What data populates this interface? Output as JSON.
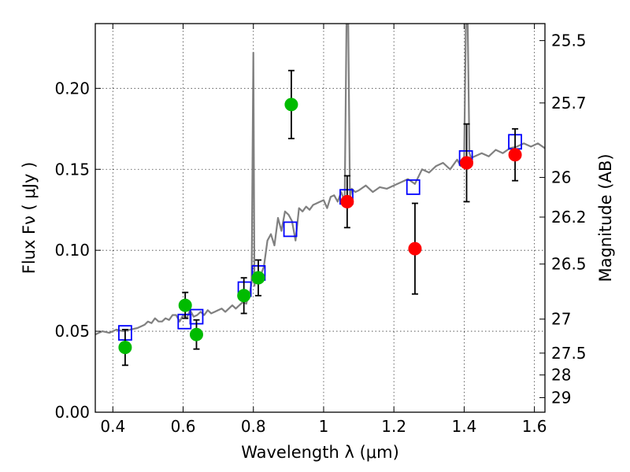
{
  "chart_data": {
    "type": "scatter",
    "xlabel": "Wavelength  λ (μm)",
    "ylabel": "Flux  Fν  ( μJy )",
    "y2label": "Magnitude (AB)",
    "xlim": [
      0.35,
      1.63
    ],
    "ylim": [
      0.0,
      0.24
    ],
    "grid": true,
    "x_ticks": [
      0.4,
      0.6,
      0.8,
      1.0,
      1.2,
      1.4,
      1.6
    ],
    "x_tick_labels": [
      "0.4",
      "0.6",
      "0.8",
      "1",
      "1.2",
      "1.4",
      "1.6"
    ],
    "y_ticks": [
      0.0,
      0.05,
      0.1,
      0.15,
      0.2
    ],
    "y_tick_labels": [
      "0.00",
      "0.05",
      "0.10",
      "0.15",
      "0.20"
    ],
    "y2_ticks": [
      {
        "label": "25.5",
        "flux": 0.2295
      },
      {
        "label": "25.7",
        "flux": 0.191
      },
      {
        "label": "26",
        "flux": 0.145
      },
      {
        "label": "26.2",
        "flux": 0.1205
      },
      {
        "label": "26.5",
        "flux": 0.0915
      },
      {
        "label": "27",
        "flux": 0.0575
      },
      {
        "label": "27.5",
        "flux": 0.0365
      },
      {
        "label": "28",
        "flux": 0.023
      },
      {
        "label": "29",
        "flux": 0.009
      }
    ],
    "colors": {
      "model": "#808080",
      "detected": "#00bb00",
      "nir": "#ff0000",
      "model_phot": "#0000ff",
      "error": "#000000"
    },
    "model_spectrum": {
      "x": [
        0.35,
        0.37,
        0.39,
        0.41,
        0.43,
        0.45,
        0.47,
        0.49,
        0.5,
        0.51,
        0.52,
        0.53,
        0.54,
        0.55,
        0.56,
        0.57,
        0.58,
        0.59,
        0.6,
        0.61,
        0.62,
        0.63,
        0.64,
        0.65,
        0.66,
        0.67,
        0.68,
        0.69,
        0.7,
        0.71,
        0.72,
        0.73,
        0.74,
        0.75,
        0.76,
        0.77,
        0.78,
        0.785,
        0.79,
        0.795,
        0.8,
        0.803,
        0.806,
        0.81,
        0.82,
        0.83,
        0.84,
        0.85,
        0.86,
        0.87,
        0.88,
        0.89,
        0.9,
        0.91,
        0.92,
        0.93,
        0.94,
        0.95,
        0.96,
        0.97,
        0.98,
        0.99,
        1.0,
        1.01,
        1.02,
        1.03,
        1.04,
        1.05,
        1.06,
        1.065,
        1.07,
        1.075,
        1.08,
        1.09,
        1.1,
        1.12,
        1.14,
        1.16,
        1.18,
        1.2,
        1.22,
        1.24,
        1.26,
        1.28,
        1.3,
        1.32,
        1.34,
        1.36,
        1.38,
        1.39,
        1.4,
        1.405,
        1.41,
        1.415,
        1.42,
        1.43,
        1.45,
        1.47,
        1.49,
        1.51,
        1.53,
        1.55,
        1.57,
        1.59,
        1.61,
        1.63
      ],
      "y": [
        0.048,
        0.05,
        0.049,
        0.051,
        0.05,
        0.051,
        0.052,
        0.054,
        0.056,
        0.055,
        0.058,
        0.056,
        0.056,
        0.058,
        0.057,
        0.06,
        0.06,
        0.056,
        0.06,
        0.058,
        0.063,
        0.059,
        0.06,
        0.062,
        0.06,
        0.063,
        0.061,
        0.062,
        0.063,
        0.064,
        0.062,
        0.064,
        0.066,
        0.064,
        0.066,
        0.068,
        0.067,
        0.072,
        0.074,
        0.08,
        0.222,
        0.078,
        0.082,
        0.085,
        0.084,
        0.09,
        0.106,
        0.11,
        0.103,
        0.12,
        0.112,
        0.124,
        0.122,
        0.118,
        0.106,
        0.126,
        0.124,
        0.127,
        0.125,
        0.128,
        0.129,
        0.13,
        0.131,
        0.126,
        0.133,
        0.134,
        0.13,
        0.136,
        0.13,
        0.24,
        0.24,
        0.132,
        0.138,
        0.136,
        0.137,
        0.14,
        0.136,
        0.139,
        0.138,
        0.14,
        0.142,
        0.144,
        0.141,
        0.15,
        0.148,
        0.152,
        0.154,
        0.15,
        0.156,
        0.152,
        0.158,
        0.24,
        0.24,
        0.16,
        0.157,
        0.158,
        0.16,
        0.158,
        0.162,
        0.16,
        0.163,
        0.164,
        0.166,
        0.164,
        0.166,
        0.163
      ]
    },
    "model_photometry": {
      "x": [
        0.435,
        0.604,
        0.638,
        0.775,
        0.815,
        0.905,
        1.065,
        1.255,
        1.405,
        1.545
      ],
      "y": [
        0.049,
        0.056,
        0.059,
        0.076,
        0.086,
        0.113,
        0.133,
        0.139,
        0.157,
        0.167
      ]
    },
    "detected": {
      "x": [
        0.435,
        0.606,
        0.638,
        0.773,
        0.814,
        0.908
      ],
      "y": [
        0.04,
        0.066,
        0.048,
        0.072,
        0.083,
        0.19
      ],
      "err": [
        0.011,
        0.008,
        0.009,
        0.011,
        0.011,
        0.021
      ]
    },
    "nir": {
      "x": [
        1.067,
        1.26,
        1.407,
        1.545
      ],
      "y": [
        0.13,
        0.101,
        0.154,
        0.159
      ],
      "err": [
        0.016,
        0.028,
        0.024,
        0.016
      ]
    }
  }
}
